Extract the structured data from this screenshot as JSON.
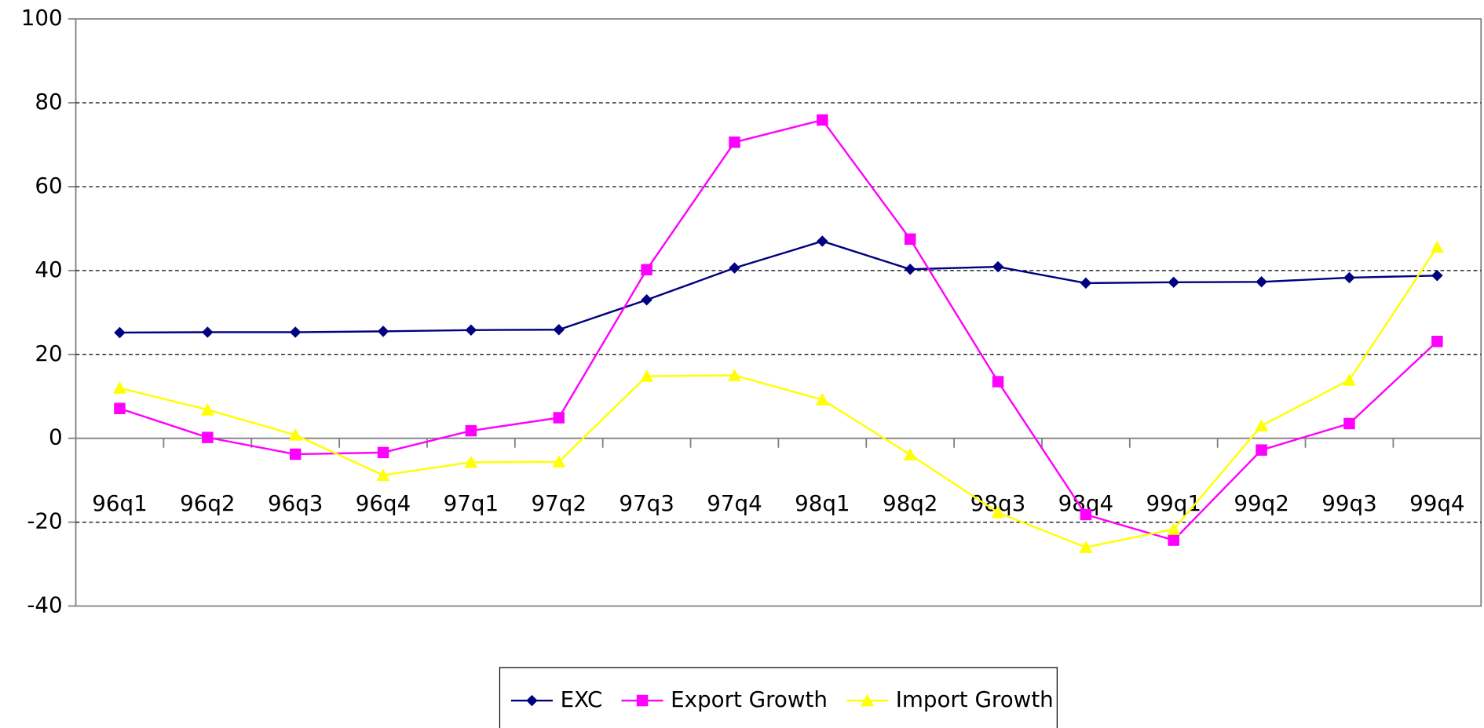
{
  "chart_data": {
    "type": "line",
    "categories": [
      "96q1",
      "96q2",
      "96q3",
      "96q4",
      "97q1",
      "97q2",
      "97q3",
      "97q4",
      "98q1",
      "98q2",
      "98q3",
      "98q4",
      "99q1",
      "99q2",
      "99q3",
      "99q4"
    ],
    "series": [
      {
        "name": "EXC",
        "color": "#000080",
        "marker": "diamond",
        "values": [
          25.2,
          25.3,
          25.3,
          25.5,
          25.8,
          25.9,
          33,
          40.6,
          47,
          40.3,
          40.9,
          37,
          37.2,
          37.3,
          38.3,
          38.8
        ]
      },
      {
        "name": "Export Growth",
        "color": "#ff00ff",
        "marker": "square",
        "values": [
          7.1,
          0.2,
          -3.8,
          -3.4,
          1.8,
          4.9,
          40.2,
          70.6,
          75.9,
          47.5,
          13.5,
          -18.2,
          -24.3,
          -2.8,
          3.5,
          23.1
        ]
      },
      {
        "name": "Import Growth",
        "color": "#ffff00",
        "marker": "triangle",
        "values": [
          12,
          6.8,
          0.8,
          -8.8,
          -5.7,
          -5.6,
          14.8,
          15,
          9.2,
          -3.9,
          -17.7,
          -26,
          -21.7,
          3,
          13.9,
          45.6
        ]
      }
    ],
    "ylim": [
      -40,
      100
    ],
    "yticks": [
      -40,
      -20,
      0,
      20,
      40,
      60,
      80,
      100
    ],
    "grid": true,
    "legend": "bottom"
  }
}
